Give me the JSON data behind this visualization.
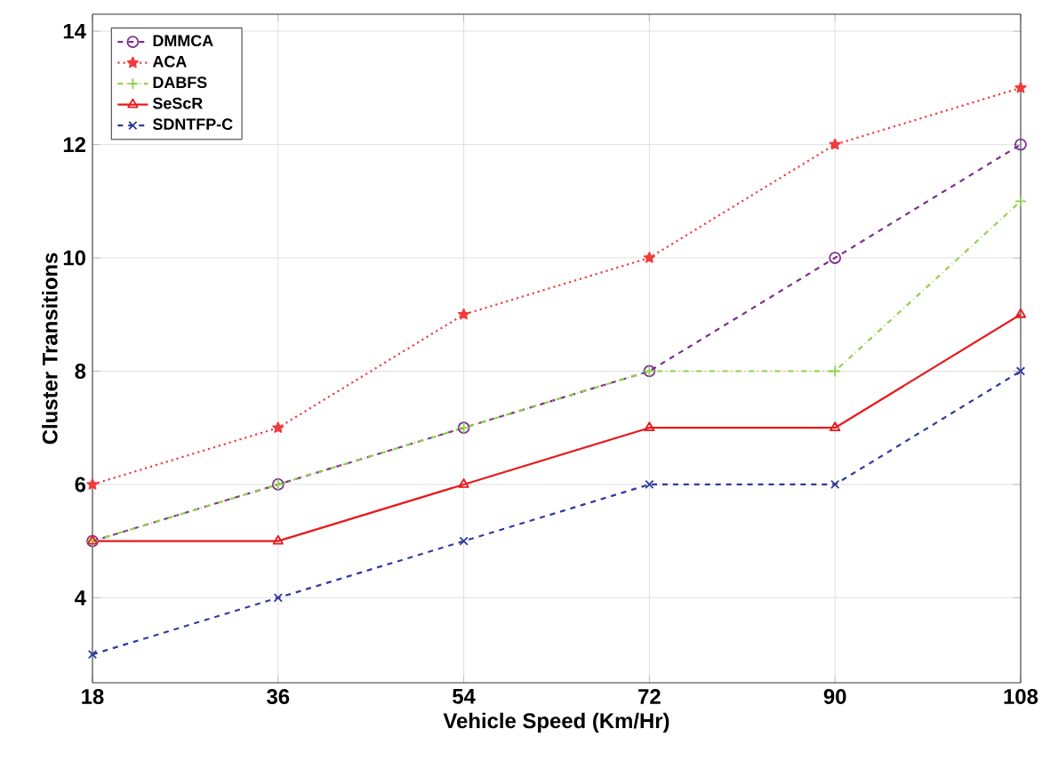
{
  "chart_data": {
    "type": "line",
    "xlabel": "Vehicle Speed (Km/Hr)",
    "ylabel": "Cluster Transitions",
    "x": [
      18,
      36,
      54,
      72,
      90,
      108
    ],
    "series": [
      {
        "name": "DMMCA",
        "color": "#7e2f8e",
        "marker": "circle",
        "line_style": "dashed",
        "values": [
          5,
          6,
          7,
          8,
          10,
          12
        ]
      },
      {
        "name": "ACA",
        "color": "#f03c3c",
        "marker": "star",
        "line_style": "dotted",
        "values": [
          6,
          7,
          9,
          10,
          12,
          13
        ]
      },
      {
        "name": "DABFS",
        "color": "#92d050",
        "marker": "plus",
        "line_style": "dashdot",
        "values": [
          5,
          6,
          7,
          8,
          8,
          11
        ]
      },
      {
        "name": "SeScR",
        "color": "#e8191c",
        "marker": "triangle",
        "line_style": "solid",
        "values": [
          5,
          5,
          6,
          7,
          7,
          9
        ]
      },
      {
        "name": "SDNTFP-C",
        "color": "#2e3a9e",
        "marker": "cross",
        "line_style": "dashed",
        "values": [
          3,
          4,
          5,
          6,
          6,
          8
        ]
      }
    ],
    "xlim": [
      18,
      108
    ],
    "xticks": [
      18,
      36,
      54,
      72,
      90,
      108
    ],
    "ylim": [
      2.5,
      14.3
    ],
    "yticks": [
      4,
      6,
      8,
      10,
      12,
      14
    ],
    "grid": true,
    "legend": "top left"
  }
}
